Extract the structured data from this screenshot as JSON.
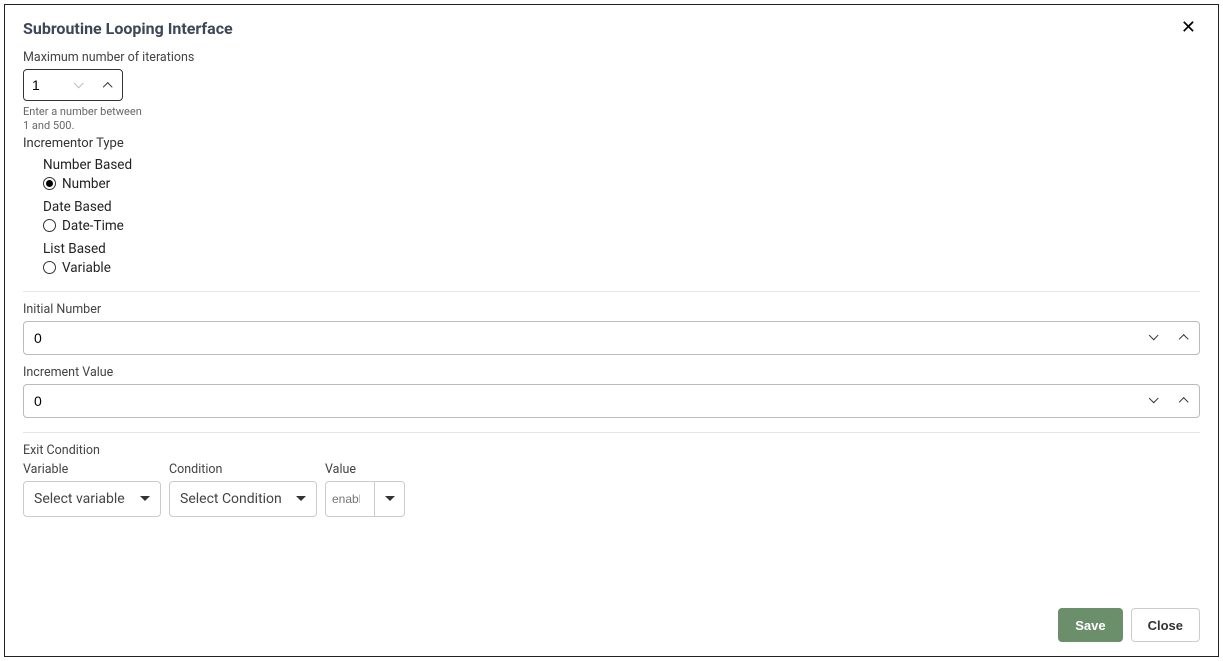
{
  "dialog": {
    "title": "Subroutine Looping Interface"
  },
  "maxIterations": {
    "label": "Maximum number of iterations",
    "value": "1",
    "helper": "Enter a number between 1 and 500."
  },
  "incrementorType": {
    "label": "Incrementor Type",
    "groups": {
      "numberBased": {
        "heading": "Number Based",
        "option": "Number",
        "selected": true
      },
      "dateBased": {
        "heading": "Date Based",
        "option": "Date-Time",
        "selected": false
      },
      "listBased": {
        "heading": "List Based",
        "option": "Variable",
        "selected": false
      }
    }
  },
  "initialNumber": {
    "label": "Initial Number",
    "value": "0"
  },
  "incrementValue": {
    "label": "Increment Value",
    "value": "0"
  },
  "exitCondition": {
    "label": "Exit Condition",
    "variable": {
      "label": "Variable",
      "placeholder": "Select variable"
    },
    "condition": {
      "label": "Condition",
      "placeholder": "Select Condition"
    },
    "value": {
      "label": "Value",
      "placeholder": "enable"
    }
  },
  "buttons": {
    "save": "Save",
    "close": "Close"
  },
  "colors": {
    "primary": "#6b8e6b",
    "border": "#cccccc",
    "text": "#333333"
  }
}
